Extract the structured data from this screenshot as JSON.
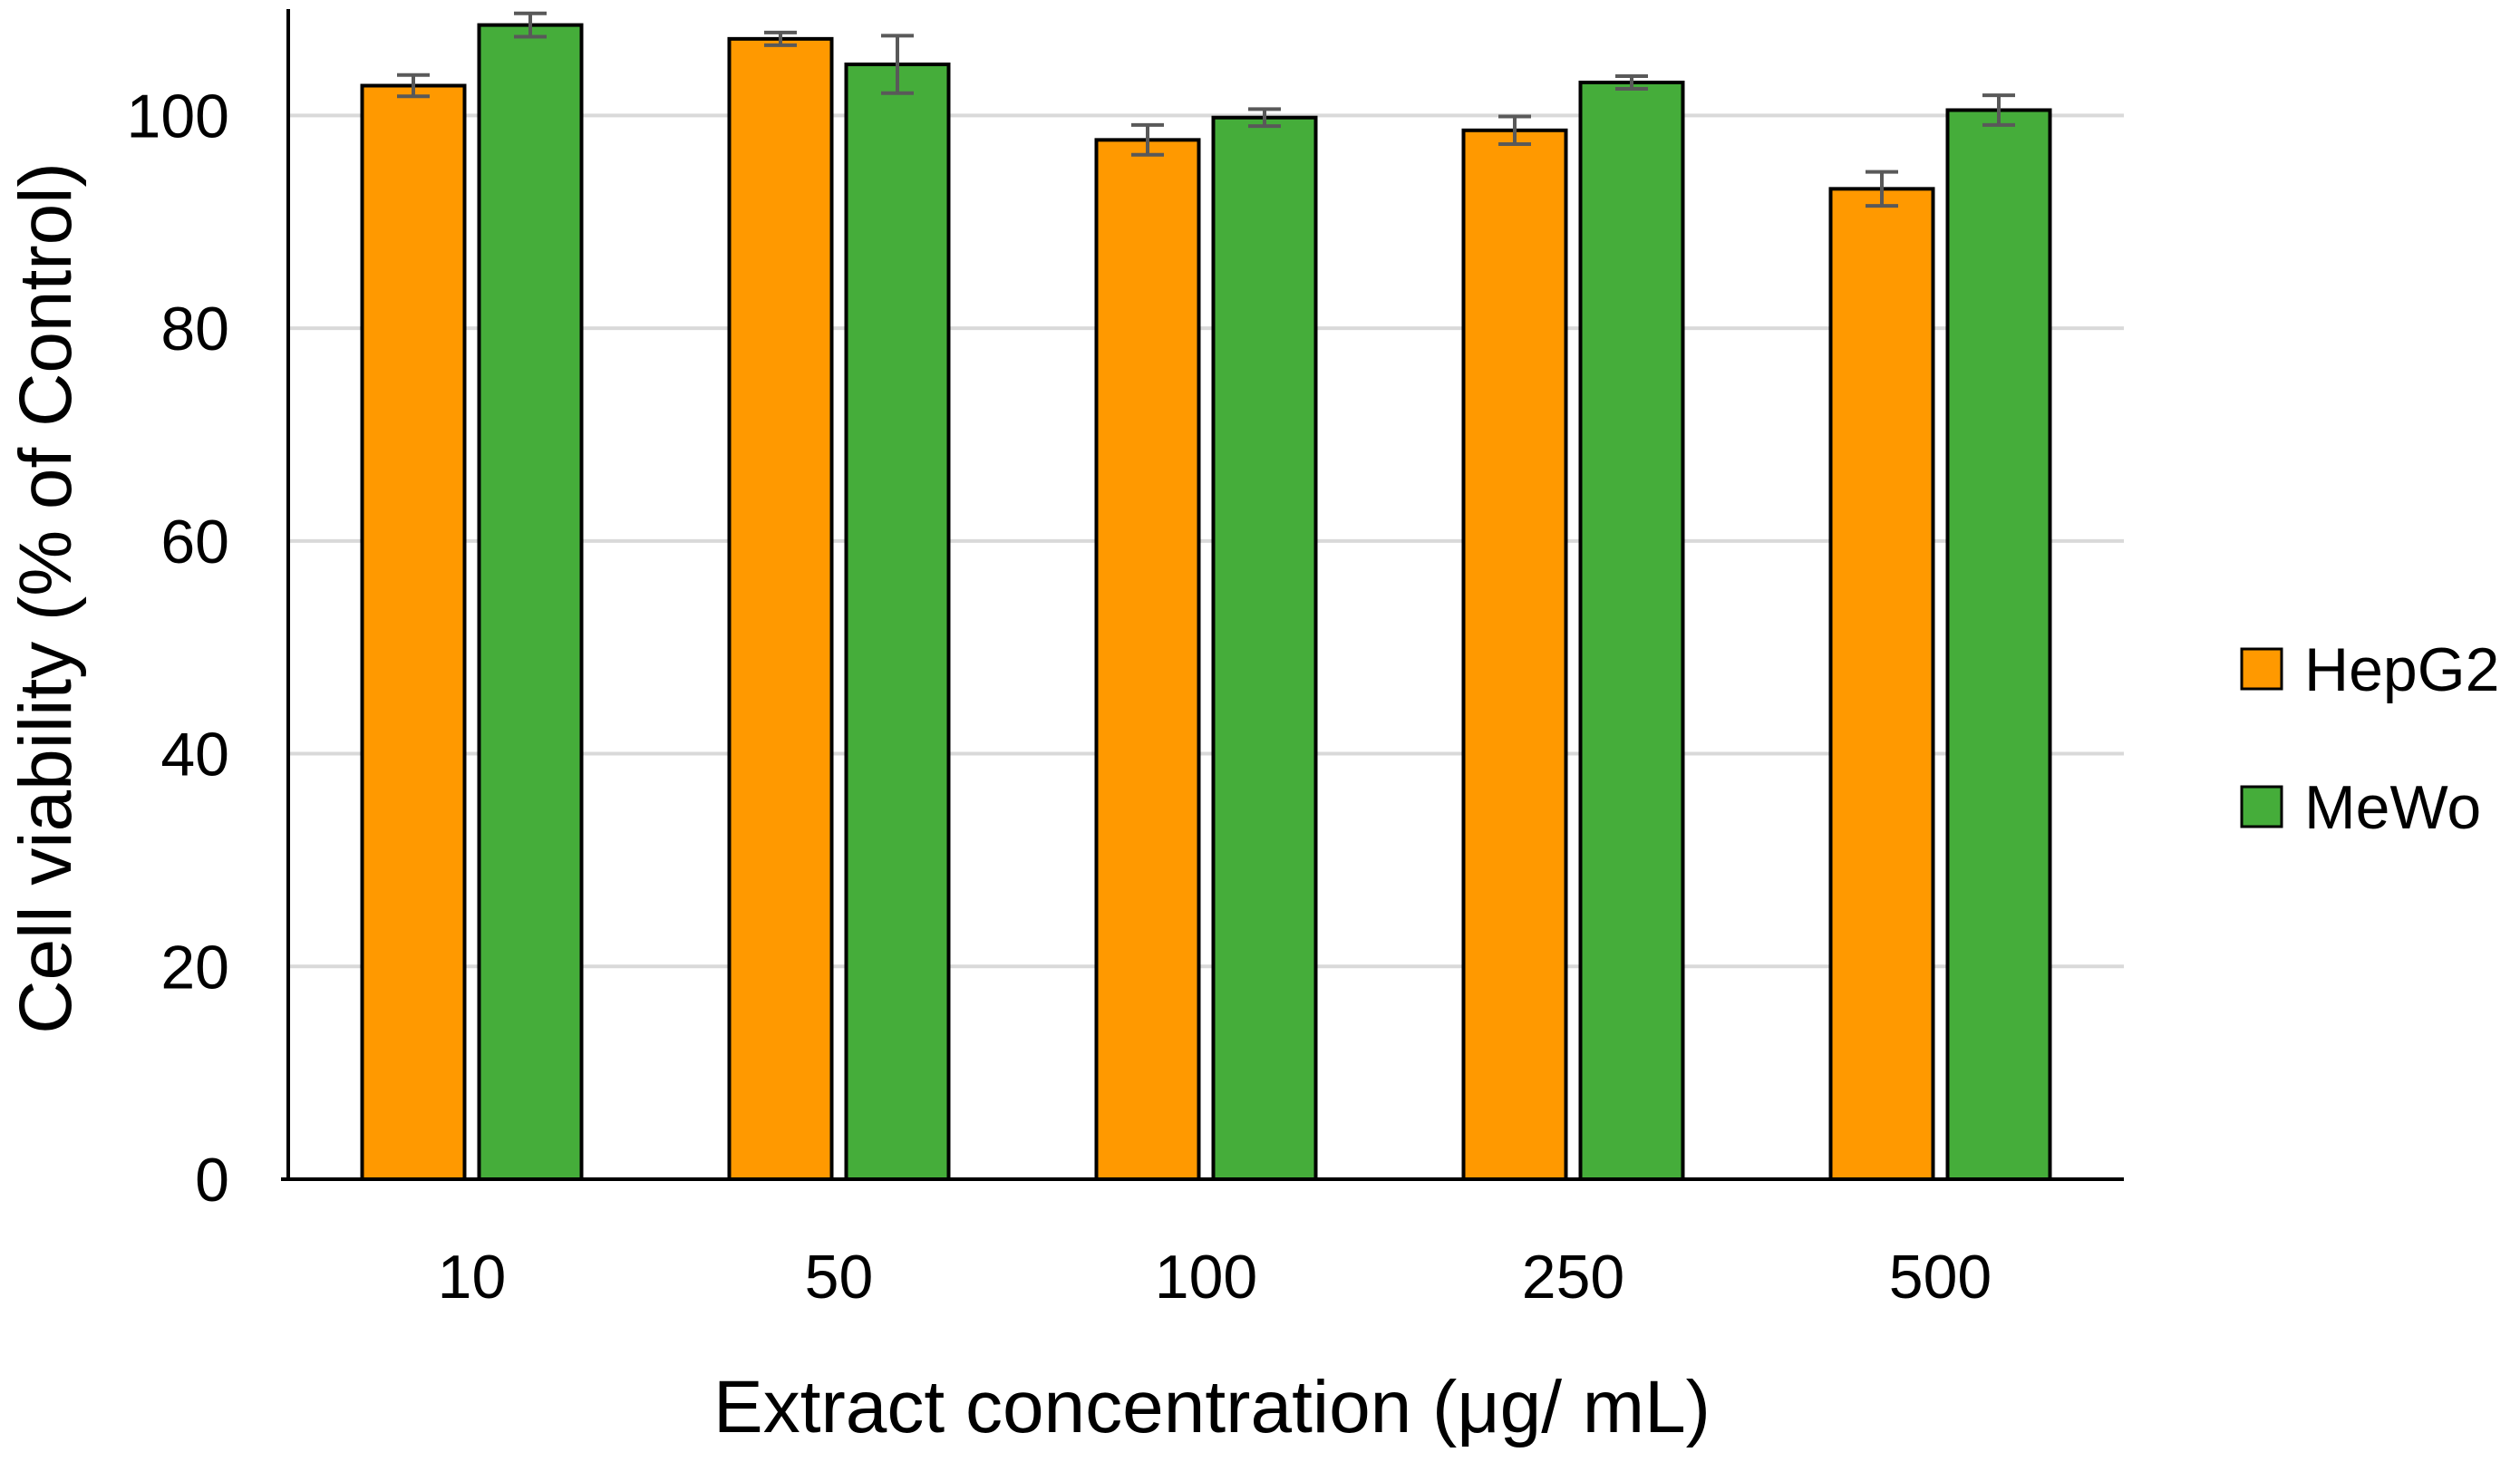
{
  "chart_data": {
    "type": "bar",
    "title": "",
    "xlabel": "Extract concentration (μg/ mL)",
    "ylabel": "Cell viability (% of Control)",
    "ylim": [
      0,
      110
    ],
    "yticks": [
      0,
      20,
      40,
      60,
      80,
      100
    ],
    "ytick_labels": [
      "0",
      "20",
      "40",
      "60",
      "80",
      "100"
    ],
    "grid": true,
    "legend_position": "right",
    "categories": [
      "10",
      "50",
      "100",
      "250",
      "500"
    ],
    "series": [
      {
        "name": "HepG2",
        "color": "#FF9900",
        "values": [
          102.8,
          107.2,
          97.7,
          98.6,
          93.1
        ],
        "errors": [
          1.0,
          0.6,
          1.4,
          1.3,
          1.6
        ]
      },
      {
        "name": "MeWo",
        "color": "#45AD3A",
        "values": [
          108.5,
          104.8,
          99.8,
          103.1,
          100.5
        ],
        "errors": [
          1.1,
          2.7,
          0.8,
          0.6,
          1.4
        ]
      }
    ],
    "colors": {
      "gridline": "#D9D9D9",
      "axis": "#000000",
      "bar_border": "#000000",
      "error_bar": "#595959"
    }
  }
}
